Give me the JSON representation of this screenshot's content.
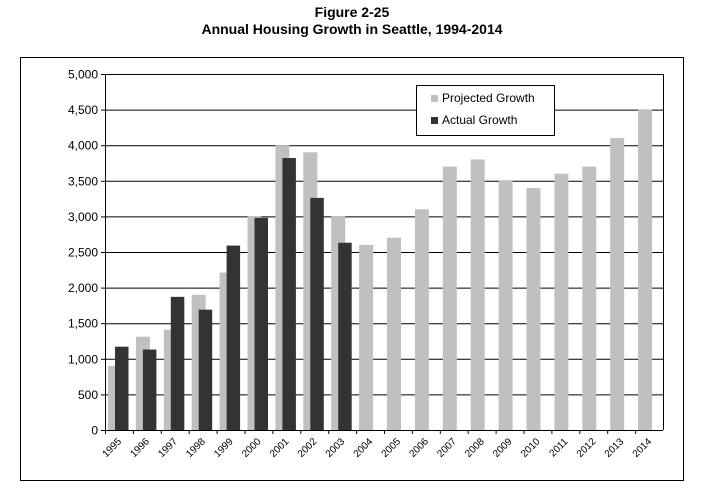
{
  "chart_data": {
    "type": "bar",
    "title": "Figure 2-25",
    "subtitle": "Annual Housing Growth in Seattle, 1994-2014",
    "xlabel": "",
    "ylabel": "",
    "categories": [
      "1995",
      "1996",
      "1997",
      "1998",
      "1999",
      "2000",
      "2001",
      "2002",
      "2003",
      "2004",
      "2005",
      "2006",
      "2007",
      "2008",
      "2009",
      "2010",
      "2011",
      "2012",
      "2013",
      "2014"
    ],
    "series": [
      {
        "name": "Projected Growth",
        "color": "#c0c0c0",
        "values": [
          900,
          1310,
          1410,
          1900,
          2210,
          3000,
          4000,
          3900,
          3000,
          2600,
          2700,
          3100,
          3700,
          3800,
          3500,
          3400,
          3600,
          3700,
          4100,
          4500
        ]
      },
      {
        "name": "Actual Growth",
        "color": "#333333",
        "values": [
          1170,
          1130,
          1870,
          1690,
          2590,
          2980,
          3820,
          3260,
          2630,
          null,
          null,
          null,
          null,
          null,
          null,
          null,
          null,
          null,
          null,
          null
        ]
      }
    ],
    "ylim": [
      0,
      5000
    ],
    "yticks": [
      "0",
      "500",
      "1,000",
      "1,500",
      "2,000",
      "2,500",
      "3,000",
      "3,500",
      "4,000",
      "4,500",
      "5,000"
    ],
    "grid": true,
    "legend": "top-right"
  }
}
